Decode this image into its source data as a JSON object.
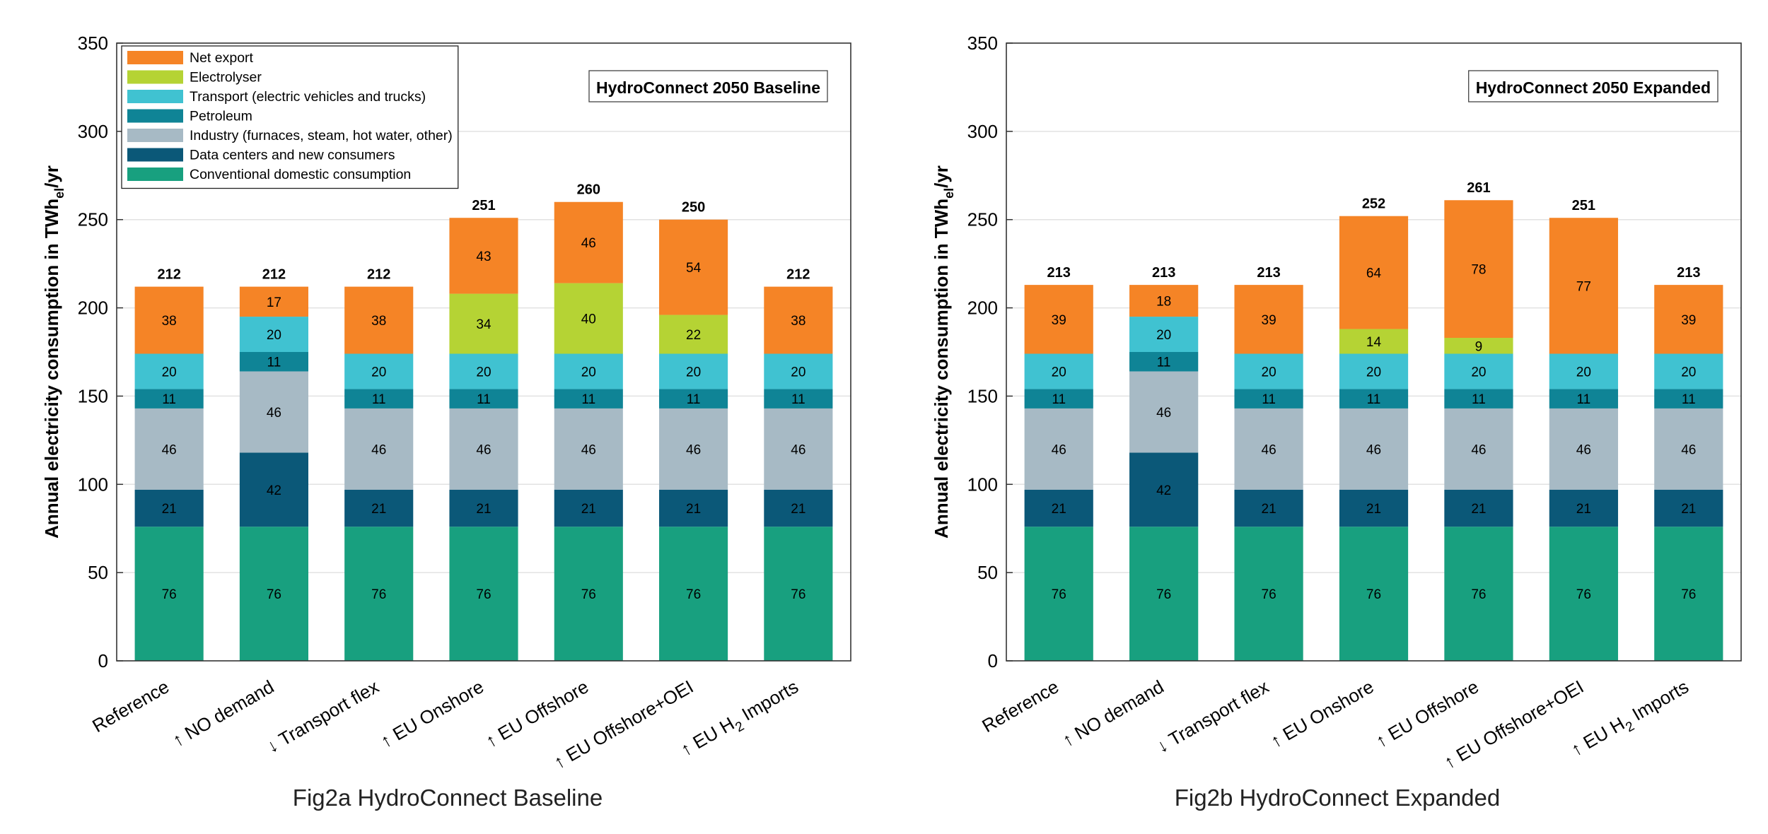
{
  "colors": {
    "Net export": "#f58426",
    "Electrolyser": "#b5d334",
    "Transport (electric vehicles and trucks)": "#40c2d1",
    "Petroleum": "#0f8496",
    "Industry (furnaces, steam, hot water, other)": "#a7bac5",
    "Data centers and new consumers": "#0b5878",
    "Conventional domestic consumption": "#18a07f"
  },
  "chart_data": [
    {
      "type": "bar",
      "stacked": true,
      "caption": "Fig2a HydroConnect Baseline",
      "box_title": "HydroConnect 2050 Baseline",
      "ylabel": "Annual electricity consumption in TWh_el/yr",
      "ylabel_parts": [
        "Annual electricity consumption in TWh",
        "el",
        "/yr"
      ],
      "ylim": [
        0,
        350
      ],
      "yticks": [
        0,
        50,
        100,
        150,
        200,
        250,
        300,
        350
      ],
      "grid": true,
      "legend": "top-left",
      "categories": [
        "Reference",
        "↑ NO demand",
        "↓ Transport flex",
        "↑ EU Onshore",
        "↑ EU Offshore",
        "↑ EU Offshore+OEI",
        "↑ EU H2 Imports"
      ],
      "series": [
        {
          "name": "Conventional domestic consumption",
          "values": [
            76,
            76,
            76,
            76,
            76,
            76,
            76
          ]
        },
        {
          "name": "Data centers and new consumers",
          "values": [
            21,
            42,
            21,
            21,
            21,
            21,
            21
          ]
        },
        {
          "name": "Industry (furnaces, steam, hot water, other)",
          "values": [
            46,
            46,
            46,
            46,
            46,
            46,
            46
          ]
        },
        {
          "name": "Petroleum",
          "values": [
            11,
            11,
            11,
            11,
            11,
            11,
            11
          ]
        },
        {
          "name": "Transport (electric vehicles and trucks)",
          "values": [
            20,
            20,
            20,
            20,
            20,
            20,
            20
          ]
        },
        {
          "name": "Electrolyser",
          "values": [
            0,
            0,
            0,
            34,
            40,
            22,
            0
          ]
        },
        {
          "name": "Net export",
          "values": [
            38,
            17,
            38,
            43,
            46,
            54,
            38
          ]
        }
      ],
      "totals": [
        212,
        212,
        212,
        251,
        260,
        250,
        212
      ],
      "legend_order": [
        "Net export",
        "Electrolyser",
        "Transport (electric vehicles and trucks)",
        "Petroleum",
        "Industry (furnaces, steam, hot water, other)",
        "Data centers and new consumers",
        "Conventional domestic consumption"
      ]
    },
    {
      "type": "bar",
      "stacked": true,
      "caption": "Fig2b HydroConnect Expanded",
      "box_title": "HydroConnect 2050 Expanded",
      "ylabel": "Annual electricity consumption in TWh_el/yr",
      "ylabel_parts": [
        "Annual electricity consumption in TWh",
        "el",
        "/yr"
      ],
      "ylim": [
        0,
        350
      ],
      "yticks": [
        0,
        50,
        100,
        150,
        200,
        250,
        300,
        350
      ],
      "grid": true,
      "categories": [
        "Reference",
        "↑ NO demand",
        "↓ Transport flex",
        "↑ EU Onshore",
        "↑ EU Offshore",
        "↑ EU Offshore+OEI",
        "↑ EU H2 Imports"
      ],
      "series": [
        {
          "name": "Conventional domestic consumption",
          "values": [
            76,
            76,
            76,
            76,
            76,
            76,
            76
          ]
        },
        {
          "name": "Data centers and new consumers",
          "values": [
            21,
            42,
            21,
            21,
            21,
            21,
            21
          ]
        },
        {
          "name": "Industry (furnaces, steam, hot water, other)",
          "values": [
            46,
            46,
            46,
            46,
            46,
            46,
            46
          ]
        },
        {
          "name": "Petroleum",
          "values": [
            11,
            11,
            11,
            11,
            11,
            11,
            11
          ]
        },
        {
          "name": "Transport (electric vehicles and trucks)",
          "values": [
            20,
            20,
            20,
            20,
            20,
            20,
            20
          ]
        },
        {
          "name": "Electrolyser",
          "values": [
            0,
            0,
            0,
            14,
            9,
            0,
            0
          ]
        },
        {
          "name": "Net export",
          "values": [
            39,
            18,
            39,
            64,
            78,
            77,
            39
          ]
        }
      ],
      "totals": [
        213,
        213,
        213,
        252,
        261,
        251,
        213
      ]
    }
  ]
}
